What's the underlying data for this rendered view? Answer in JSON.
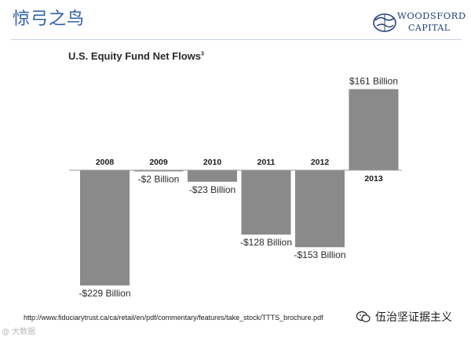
{
  "header": {
    "title": "惊弓之鸟",
    "logo_line1": "WOODSFORD",
    "logo_line2": "CAPITAL"
  },
  "chart_data": {
    "type": "bar",
    "title": "U.S. Equity Fund Net Flows",
    "title_footnote": "3",
    "categories": [
      "2008",
      "2009",
      "2010",
      "2011",
      "2012",
      "2013"
    ],
    "values": [
      -229,
      -2,
      -23,
      -128,
      -153,
      161
    ],
    "data_labels": [
      "-$229 Billion",
      "-$2 Billion",
      "-$23 Billion",
      "-$128 Billion",
      "-$153 Billion",
      "$161 Billion"
    ],
    "unit": "Billion USD",
    "xlabel": "",
    "ylabel": "",
    "ylim": [
      -229,
      161
    ],
    "grid": false,
    "bar_color": "#8a8a8a"
  },
  "footer": {
    "source": "http://www.fiduciarytrust.ca/ca/retail/en/pdf/commentary/features/take_stock/TTTS_brochure.pdf",
    "watermark_right": "伍治坚证据主义",
    "watermark_left": "@ 大数据"
  }
}
